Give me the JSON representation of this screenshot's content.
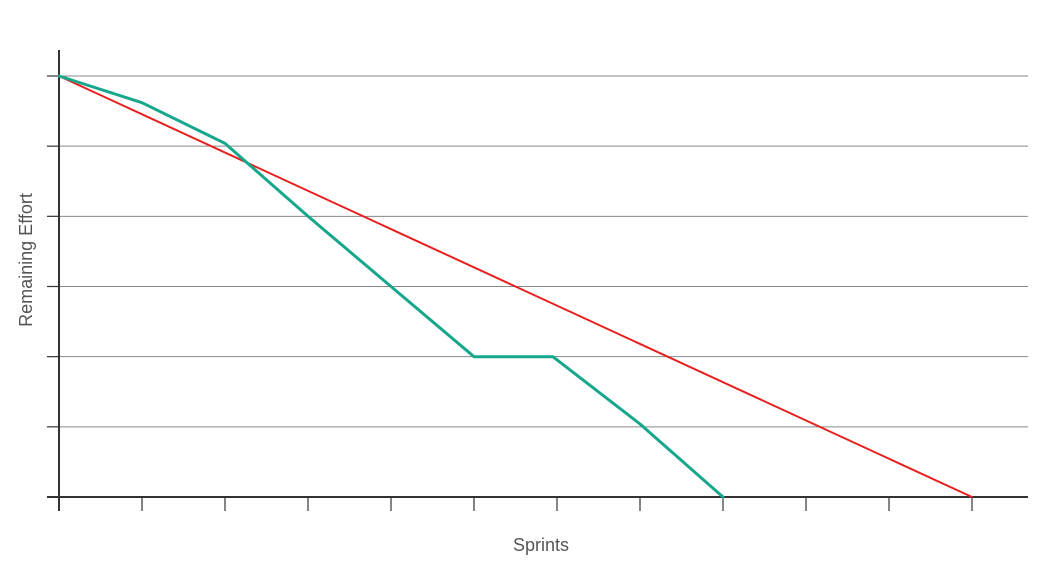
{
  "chart_data": {
    "type": "line",
    "title": "",
    "xlabel": "Sprints",
    "ylabel": "Remaining Effort",
    "x": [
      0,
      1,
      2,
      3,
      4,
      5,
      6,
      7,
      8,
      9,
      10,
      11
    ],
    "xlim": [
      0,
      11.7
    ],
    "ylim": [
      0,
      6
    ],
    "grid": true,
    "legend": "none",
    "series": [
      {
        "color": "#17a78c",
        "points": [
          {
            "x": 0,
            "y": 6
          },
          {
            "x": 1,
            "y": 5.62
          },
          {
            "x": 2,
            "y": 5.04
          },
          {
            "x": 3,
            "y": 4
          },
          {
            "x": 4,
            "y": 3
          },
          {
            "x": 5,
            "y": 2
          },
          {
            "x": 5.95,
            "y": 2
          },
          {
            "x": 7,
            "y": 1.04
          },
          {
            "x": 8,
            "y": 0
          }
        ]
      },
      {
        "color": "#e8201f",
        "points": [
          {
            "x": 0,
            "y": 6
          },
          {
            "x": 11,
            "y": 0
          }
        ]
      }
    ]
  }
}
